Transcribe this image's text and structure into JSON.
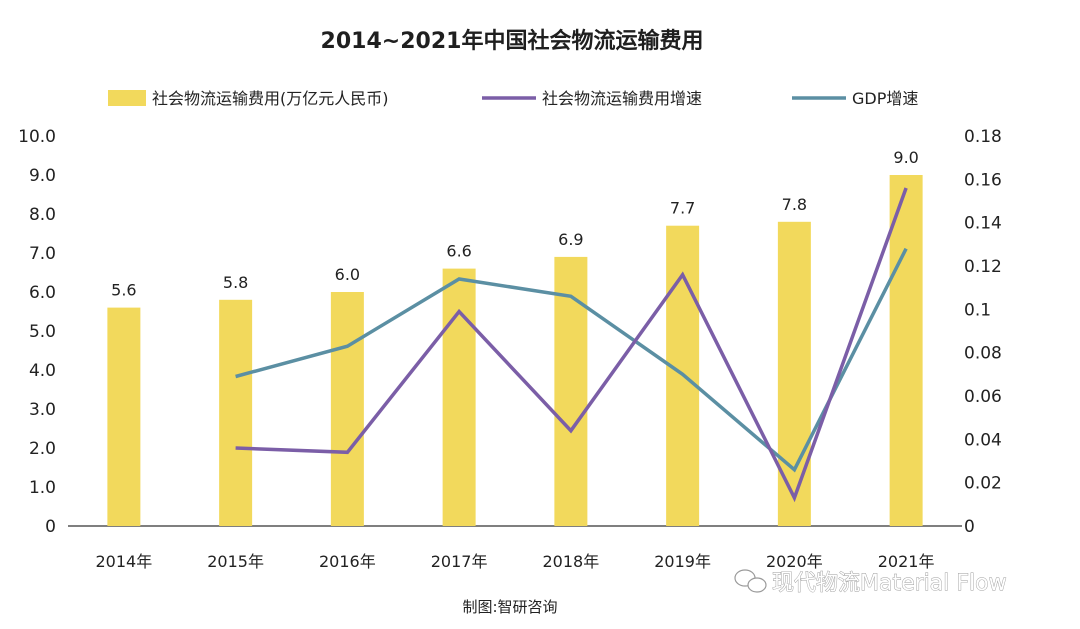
{
  "chart_data": {
    "type": "bar",
    "title": "2014~2021年中国社会物流运输费用",
    "categories": [
      "2014年",
      "2015年",
      "2016年",
      "2017年",
      "2018年",
      "2019年",
      "2020年",
      "2021年"
    ],
    "series": [
      {
        "name": "社会物流运输费用(万亿元人民币)",
        "type": "bar",
        "axis": "left",
        "color": "#f2d95c",
        "values": [
          5.6,
          5.8,
          6.0,
          6.6,
          6.9,
          7.7,
          7.8,
          9.0
        ],
        "labels": [
          "5.6",
          "5.8",
          "6.0",
          "6.6",
          "6.9",
          "7.7",
          "7.8",
          "9.0"
        ]
      },
      {
        "name": "社会物流运输费用增速",
        "type": "line",
        "axis": "right",
        "color": "#7b5ea7",
        "values": [
          null,
          0.036,
          0.034,
          0.099,
          0.044,
          0.116,
          0.013,
          0.156
        ]
      },
      {
        "name": "GDP增速",
        "type": "line",
        "axis": "right",
        "color": "#5b8fa3",
        "values": [
          null,
          0.069,
          0.083,
          0.114,
          0.106,
          0.07,
          0.026,
          0.128
        ]
      }
    ],
    "y_left": {
      "ylim": [
        0,
        10
      ],
      "ticks": [
        "0",
        "1.0",
        "2.0",
        "3.0",
        "4.0",
        "5.0",
        "6.0",
        "7.0",
        "8.0",
        "9.0",
        "10.0"
      ]
    },
    "y_right": {
      "ylim": [
        0,
        0.18
      ],
      "ticks": [
        "0",
        "0.02",
        "0.04",
        "0.06",
        "0.08",
        "0.1",
        "0.12",
        "0.14",
        "0.16",
        "0.18"
      ]
    },
    "legend": "top",
    "grid": false
  },
  "source_text": "制图:智研咨询",
  "watermark": "现代物流Material Flow"
}
